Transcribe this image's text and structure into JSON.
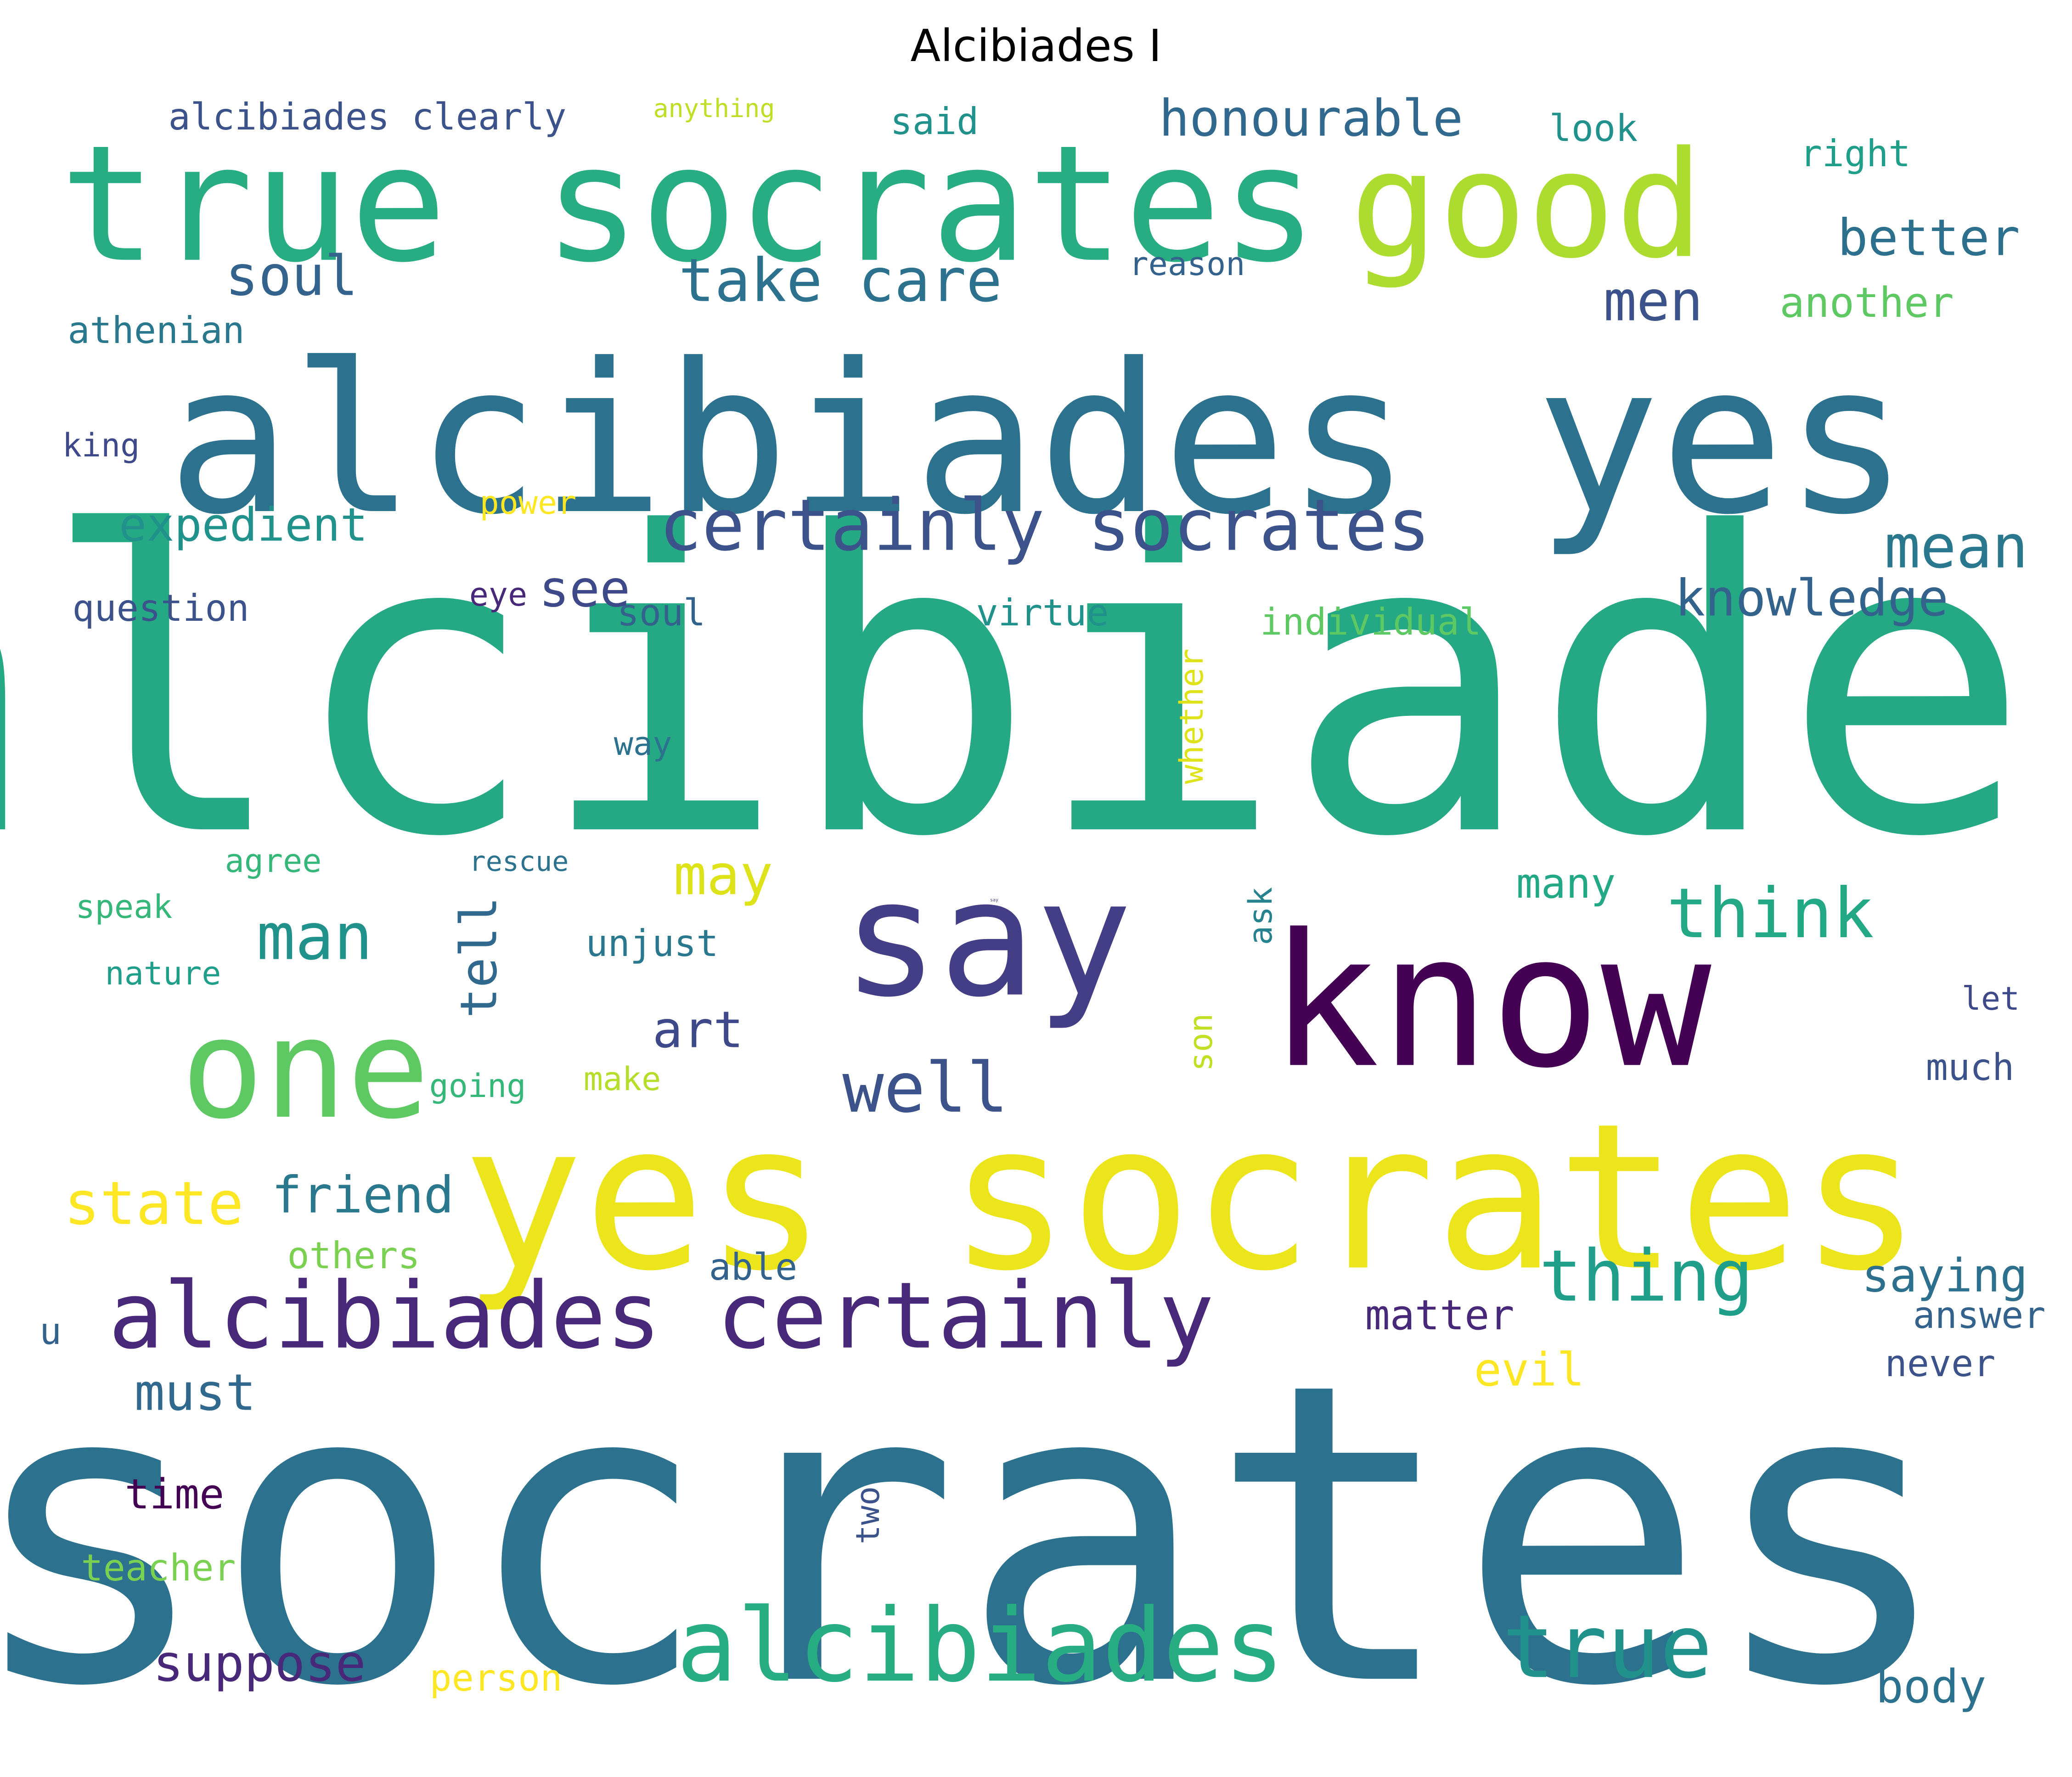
{
  "title": "Alcibiades I",
  "words": [
    {
      "text": "alcibiades",
      "color": "#25a884"
    },
    {
      "text": "socrates",
      "color": "#2c728e"
    },
    {
      "text": "alcibiades yes",
      "color": "#2c728e"
    },
    {
      "text": "yes socrates",
      "color": "#ece51b"
    },
    {
      "text": "true socrates",
      "color": "#27ad81"
    },
    {
      "text": "know",
      "color": "#440154"
    },
    {
      "text": "say",
      "color": "#433e85"
    },
    {
      "text": "good",
      "color": "#addc30"
    },
    {
      "text": "one",
      "color": "#5ec962"
    },
    {
      "text": "alcibiades",
      "color": "#27ad81"
    },
    {
      "text": "alcibiades certainly",
      "color": "#482878"
    },
    {
      "text": "true",
      "color": "#21918c"
    },
    {
      "text": "certainly socrates",
      "color": "#3b528b"
    },
    {
      "text": "thing",
      "color": "#1f9e89"
    },
    {
      "text": "take care",
      "color": "#2c728e"
    },
    {
      "text": "think",
      "color": "#22a884"
    },
    {
      "text": "man",
      "color": "#21918c"
    },
    {
      "text": "well",
      "color": "#3b528b"
    },
    {
      "text": "state",
      "color": "#fde725"
    },
    {
      "text": "mean",
      "color": "#2a788e"
    },
    {
      "text": "honourable",
      "color": "#31688e"
    },
    {
      "text": "better",
      "color": "#2d708e"
    },
    {
      "text": "men",
      "color": "#3b528b"
    },
    {
      "text": "soul",
      "color": "#33638d"
    },
    {
      "text": "say",
      "color": "#433e85"
    },
    {
      "text": "knowledge",
      "color": "#33638d"
    },
    {
      "text": "may",
      "color": "#dde318"
    },
    {
      "text": "art",
      "color": "#3e4989"
    },
    {
      "text": "suppose",
      "color": "#482878"
    },
    {
      "text": "must",
      "color": "#31688e"
    },
    {
      "text": "friend",
      "color": "#2a788e"
    },
    {
      "text": "saying",
      "color": "#2d708e"
    },
    {
      "text": "tell",
      "color": "#31688e"
    },
    {
      "text": "see",
      "color": "#3e4989"
    },
    {
      "text": "body",
      "color": "#2c728e"
    },
    {
      "text": "expedient",
      "color": "#21918c"
    },
    {
      "text": "athenian",
      "color": "#2a788e"
    },
    {
      "text": "alcibiades clearly",
      "color": "#3b528b"
    },
    {
      "text": "another",
      "color": "#5ec962"
    },
    {
      "text": "many",
      "color": "#22a884"
    },
    {
      "text": "matter",
      "color": "#482878"
    },
    {
      "text": "evil",
      "color": "#fde725"
    },
    {
      "text": "time",
      "color": "#440154"
    },
    {
      "text": "virtue",
      "color": "#21918c"
    },
    {
      "text": "individual",
      "color": "#5ec962"
    },
    {
      "text": "question",
      "color": "#3b528b"
    },
    {
      "text": "look",
      "color": "#21918c"
    },
    {
      "text": "right",
      "color": "#1f9e89"
    },
    {
      "text": "unjust",
      "color": "#2a788e"
    },
    {
      "text": "others",
      "color": "#7ad151"
    },
    {
      "text": "person",
      "color": "#fde725"
    },
    {
      "text": "never",
      "color": "#3b528b"
    },
    {
      "text": "answer",
      "color": "#33638d"
    },
    {
      "text": "much",
      "color": "#3b528b"
    },
    {
      "text": "agree",
      "color": "#35b779"
    },
    {
      "text": "power",
      "color": "#fde725"
    },
    {
      "text": "speak",
      "color": "#35b779"
    },
    {
      "text": "king",
      "color": "#3e4989"
    },
    {
      "text": "teacher",
      "color": "#7ad151"
    },
    {
      "text": "said",
      "color": "#21918c"
    },
    {
      "text": "reason",
      "color": "#33638d"
    },
    {
      "text": "nature",
      "color": "#1f9e89"
    },
    {
      "text": "make",
      "color": "#b5de2b"
    },
    {
      "text": "going",
      "color": "#35b779"
    },
    {
      "text": "able",
      "color": "#33638d"
    },
    {
      "text": "u",
      "color": "#33638d"
    },
    {
      "text": "eye",
      "color": "#482878"
    },
    {
      "text": "whether",
      "color": "#dde318"
    },
    {
      "text": "ask",
      "color": "#26828e"
    },
    {
      "text": "son",
      "color": "#c2df23"
    },
    {
      "text": "two",
      "color": "#3b528b"
    },
    {
      "text": "let",
      "color": "#3e4989"
    },
    {
      "text": "way",
      "color": "#2c728e"
    },
    {
      "text": "rescue",
      "color": "#2c728e"
    },
    {
      "text": "anything",
      "color": "#bddf26"
    },
    {
      "text": "soul",
      "color": "#33638d"
    }
  ]
}
